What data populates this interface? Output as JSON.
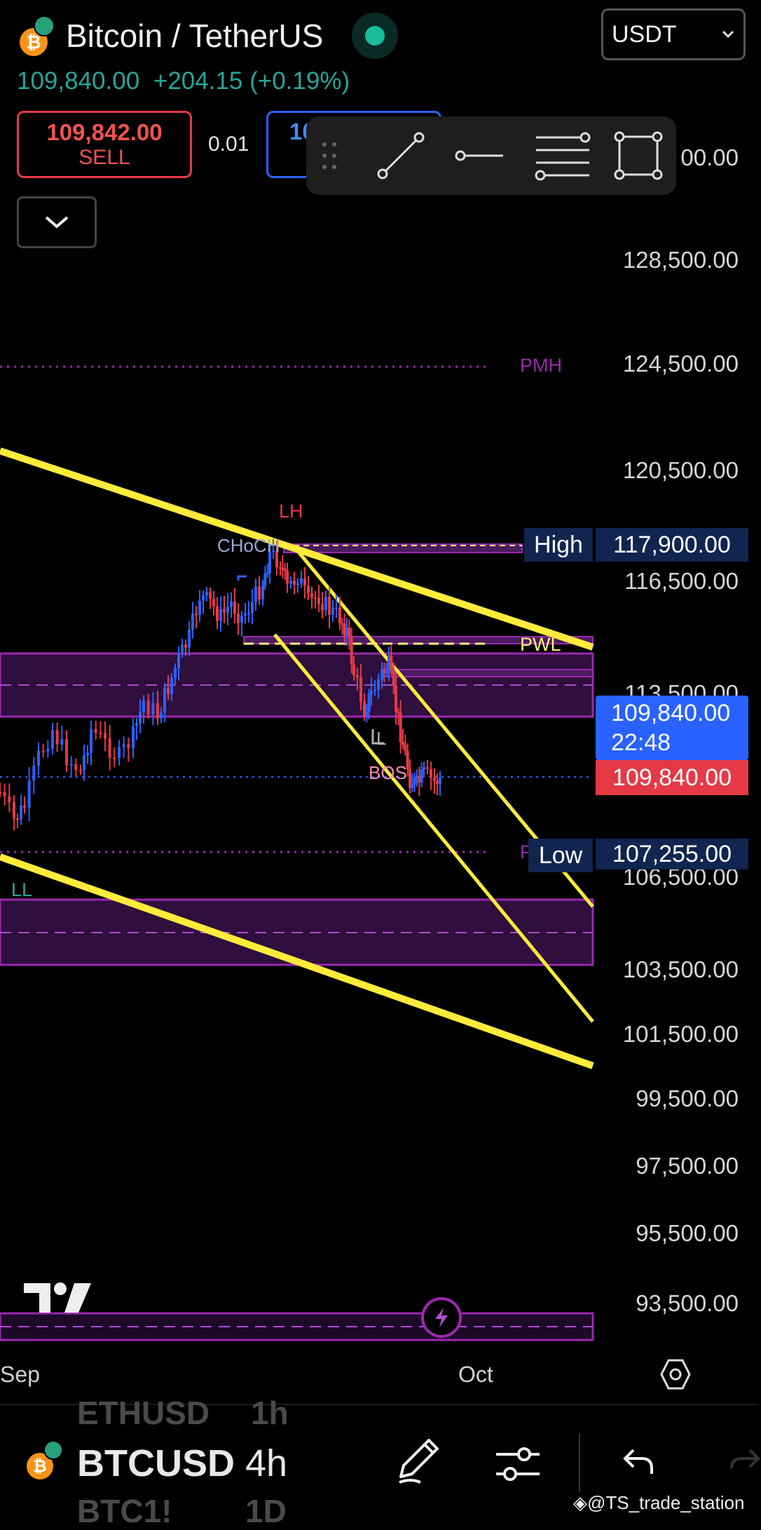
{
  "header": {
    "symbol_name": "Bitcoin / TetherUS",
    "coin_letter": "₿",
    "last_price": "109,840.00",
    "change": "+204.15 (+0.19%)",
    "currency_select": "USDT"
  },
  "order": {
    "sell_price": "109,842.00",
    "sell_label": "SELL",
    "quantity": "0.01",
    "buy_price_partial": "10"
  },
  "price_axis": {
    "ticks": [
      "00.00",
      "128,500.00",
      "124,500.00",
      "120,500.00",
      "116,500.00",
      "113,500.00",
      "106,500.00",
      "103,500.00",
      "101,500.00",
      "99,500.00",
      "97,500.00",
      "95,500.00",
      "93,500.00"
    ],
    "high_label": "High",
    "high_value": "117,900.00",
    "current_value": "109,840.00",
    "countdown": "22:48",
    "bid_value": "109,840.00",
    "low_label": "Low",
    "low_value": "107,255.00"
  },
  "chart_labels": {
    "pmh": "PMH",
    "pwl": "PWL",
    "lh": "LH",
    "choch": "CHoCH",
    "bos": "BOS",
    "ll": "LL",
    "l": "L",
    "p": "P"
  },
  "time_axis": {
    "labels": [
      "Sep",
      "Oct"
    ]
  },
  "bottom": {
    "symbol_prev": "ETHUSD",
    "interval_prev": "1h",
    "symbol": "BTCUSD",
    "interval": "4h",
    "symbol_next": "BTC1!",
    "interval_next": "1D",
    "watermark": "@TS_trade_station"
  },
  "colors": {
    "up": "#2962ff",
    "down": "#e53946",
    "trendline": "#ffeb3b",
    "zone": "#9c27b0",
    "accent_blue": "#2962ff",
    "axis_navy": "#10254f"
  }
}
